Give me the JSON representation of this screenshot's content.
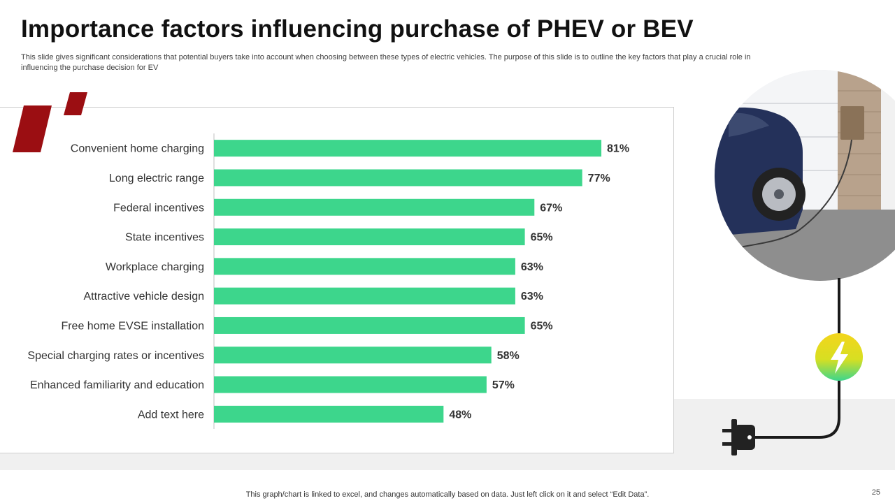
{
  "slide": {
    "title": "Importance factors influencing purchase of PHEV or BEV",
    "subtitle": "This slide gives significant considerations that potential buyers take into account when choosing between these types of electric vehicles. The purpose of this slide is to outline the key factors that play a crucial role in influencing the purchase decision for EV",
    "footer_note": "This graph/chart is linked to excel, and changes automatically based on data. Just left click on it and select “Edit Data”.",
    "page_number": "25"
  },
  "colors": {
    "bar": "#3dd68c",
    "accent_red": "#9b0e12",
    "text_dark": "#111111",
    "panel_band": "#f0f0f0"
  },
  "icons": {
    "accent": "quote-marks-icon",
    "photo": "ev-charging-photo",
    "bolt": "lightning-bolt-icon",
    "plug": "power-plug-icon"
  },
  "chart_data": {
    "type": "bar",
    "orientation": "horizontal",
    "categories": [
      "Convenient home charging",
      "Long electric range",
      "Federal incentives",
      "State incentives",
      "Workplace charging",
      "Attractive vehicle design",
      "Free home EVSE installation",
      "Special charging rates or incentives",
      "Enhanced familiarity and education",
      "Add text here"
    ],
    "values": [
      81,
      77,
      67,
      65,
      63,
      63,
      65,
      58,
      57,
      48
    ],
    "value_labels": [
      "81%",
      "77%",
      "67%",
      "65%",
      "63%",
      "63%",
      "65%",
      "58%",
      "57%",
      "48%"
    ],
    "unit": "%",
    "xlim": [
      0,
      100
    ],
    "grid": false,
    "legend": "none",
    "title": "",
    "xlabel": "",
    "ylabel": ""
  }
}
